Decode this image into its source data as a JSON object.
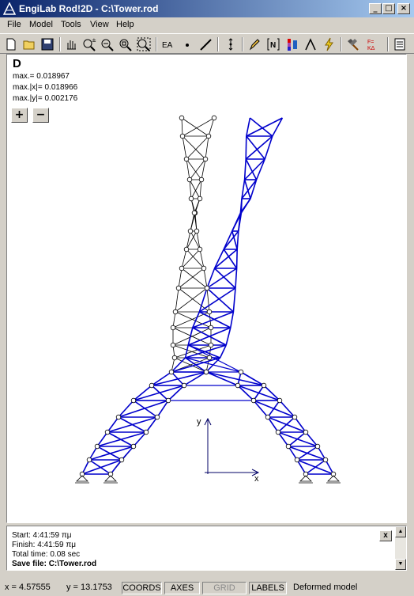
{
  "window": {
    "title": "EngiLab Rod!2D - C:\\Tower.rod",
    "minimize": "_",
    "maximize": "□",
    "close": "×"
  },
  "menu": [
    "File",
    "Model",
    "Tools",
    "View",
    "Help"
  ],
  "toolbar_icons": [
    "new-icon",
    "open-icon",
    "save-icon",
    "pan-icon",
    "zoom-in-icon",
    "zoom-out-icon",
    "zoom-window-icon",
    "zoom-extents-icon",
    "section-properties-icon",
    "node-icon",
    "element-icon",
    "support-icon",
    "pencil-icon",
    "bracket-n-icon",
    "color-scale-icon",
    "lambda-icon",
    "lightning-icon",
    "hammer-icon",
    "force-icon",
    "report-icon"
  ],
  "toolbar_texts": {
    "ea": "EA",
    "fk": "F=KΔ"
  },
  "plot": {
    "title": "D",
    "stats": [
      "max.= 0.018967",
      "max.|x|= 0.018966",
      "max.|y|= 0.002176"
    ],
    "zoom_in": "+",
    "zoom_out": "−",
    "axis_x": "x",
    "axis_y": "y",
    "colors": {
      "original": "#000000",
      "deformed": "#0000cc"
    }
  },
  "log": {
    "lines": [
      "Start:  4:41:59 πμ",
      "Finish:  4:41:59 πμ",
      "Total time:  0.08 sec"
    ],
    "save_line": "Save file: C:\\Tower.rod",
    "close": "x"
  },
  "status": {
    "x": "x = 4.57555",
    "y": "y = 13.1753",
    "coords": "COORDS",
    "axes": "AXES",
    "grid": "GRID",
    "labels": "LABELS",
    "mode": "Deformed model"
  }
}
